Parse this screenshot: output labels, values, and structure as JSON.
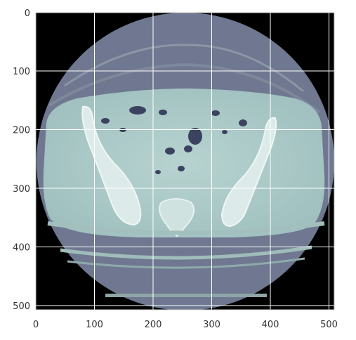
{
  "plot": {
    "kind": "grayscale CT axial slice shown in a bone colormap with pixel-index axes",
    "colormap": "bone",
    "background_color": "#000000",
    "scan_circle_color": "#6f7890",
    "body_color": "#a9cac8",
    "bone_color": "#dfefee",
    "air_pocket_color": "#39405a",
    "grid": true,
    "grid_color": "#ffffff",
    "x_axis": {
      "range": [
        0,
        511
      ],
      "ticks": [
        0,
        100,
        200,
        300,
        400,
        500
      ],
      "tick_labels": [
        "0",
        "100",
        "200",
        "300",
        "400",
        "500"
      ]
    },
    "y_axis": {
      "range": [
        0,
        511
      ],
      "inverted": true,
      "ticks": [
        0,
        100,
        200,
        300,
        400,
        500
      ],
      "tick_labels": [
        "0",
        "100",
        "200",
        "300",
        "400",
        "500"
      ]
    }
  }
}
